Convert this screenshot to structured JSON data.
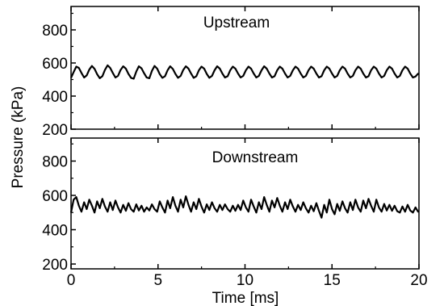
{
  "chart_data": [
    {
      "type": "line",
      "title": "Upstream",
      "xlabel": "",
      "ylabel": "",
      "xlim": [
        0,
        20
      ],
      "ylim": [
        200,
        900
      ],
      "xticks": [
        0,
        5,
        10,
        15,
        20
      ],
      "yticks": [
        200,
        400,
        600,
        800
      ],
      "ytick_labels": [
        "200",
        "400",
        "600",
        "800"
      ],
      "grid": false,
      "series": [
        {
          "color": "#000000",
          "x": [
            0.0,
            0.15,
            0.3,
            0.45,
            0.6,
            0.75,
            0.9,
            1.05,
            1.2,
            1.35,
            1.5,
            1.65,
            1.8,
            1.95,
            2.1,
            2.25,
            2.4,
            2.55,
            2.7,
            2.85,
            3.0,
            3.15,
            3.3,
            3.45,
            3.6,
            3.75,
            3.9,
            4.05,
            4.2,
            4.35,
            4.5,
            4.65,
            4.8,
            4.95,
            5.1,
            5.25,
            5.4,
            5.55,
            5.7,
            5.85,
            6.0,
            6.15,
            6.3,
            6.45,
            6.6,
            6.75,
            6.9,
            7.05,
            7.2,
            7.35,
            7.5,
            7.65,
            7.8,
            7.95,
            8.1,
            8.25,
            8.4,
            8.55,
            8.7,
            8.85,
            9.0,
            9.15,
            9.3,
            9.45,
            9.6,
            9.75,
            9.9,
            10.05,
            10.2,
            10.35,
            10.5,
            10.65,
            10.8,
            10.95,
            11.1,
            11.25,
            11.4,
            11.55,
            11.7,
            11.85,
            12.0,
            12.15,
            12.3,
            12.45,
            12.6,
            12.75,
            12.9,
            13.05,
            13.2,
            13.35,
            13.5,
            13.65,
            13.8,
            13.95,
            14.1,
            14.25,
            14.4,
            14.55,
            14.7,
            14.85,
            15.0,
            15.15,
            15.3,
            15.45,
            15.6,
            15.75,
            15.9,
            16.05,
            16.2,
            16.35,
            16.5,
            16.65,
            16.8,
            16.95,
            17.1,
            17.25,
            17.4,
            17.55,
            17.7,
            17.85,
            18.0,
            18.15,
            18.3,
            18.45,
            18.6,
            18.75,
            18.9,
            19.05,
            19.2,
            19.35,
            19.5,
            19.65,
            19.8,
            19.95,
            20.0
          ],
          "values": [
            510,
            545,
            578,
            570,
            540,
            512,
            525,
            560,
            582,
            565,
            532,
            508,
            520,
            558,
            586,
            570,
            540,
            512,
            522,
            558,
            580,
            566,
            534,
            510,
            505,
            548,
            580,
            568,
            538,
            512,
            508,
            552,
            582,
            566,
            532,
            510,
            520,
            556,
            580,
            564,
            534,
            510,
            522,
            558,
            580,
            566,
            536,
            510,
            520,
            556,
            578,
            566,
            534,
            510,
            522,
            556,
            580,
            566,
            536,
            512,
            520,
            556,
            578,
            566,
            536,
            512,
            522,
            556,
            578,
            566,
            536,
            512,
            522,
            556,
            580,
            566,
            536,
            512,
            520,
            556,
            578,
            566,
            536,
            512,
            522,
            556,
            578,
            566,
            536,
            512,
            522,
            556,
            578,
            566,
            536,
            512,
            520,
            556,
            578,
            566,
            536,
            512,
            522,
            556,
            578,
            566,
            536,
            512,
            522,
            556,
            578,
            566,
            536,
            512,
            520,
            556,
            578,
            566,
            536,
            512,
            522,
            556,
            578,
            566,
            536,
            512,
            522,
            556,
            578,
            566,
            536,
            512,
            518,
            535,
            532
          ]
        }
      ]
    },
    {
      "type": "line",
      "title": "Downstream",
      "xlabel": "Time [ms]",
      "ylabel": "Pressure (kPa)",
      "xlim": [
        0,
        20
      ],
      "ylim": [
        200,
        900
      ],
      "xticks": [
        0,
        5,
        10,
        15,
        20
      ],
      "xtick_labels": [
        "0",
        "5",
        "10",
        "15",
        "20"
      ],
      "yticks": [
        200,
        400,
        600,
        800
      ],
      "ytick_labels": [
        "200",
        "400",
        "600",
        "800"
      ],
      "grid": false,
      "series": [
        {
          "color": "#000000",
          "x": [
            0.0,
            0.15,
            0.3,
            0.45,
            0.6,
            0.75,
            0.9,
            1.05,
            1.2,
            1.35,
            1.5,
            1.65,
            1.8,
            1.95,
            2.1,
            2.25,
            2.4,
            2.55,
            2.7,
            2.85,
            3.0,
            3.15,
            3.3,
            3.45,
            3.6,
            3.75,
            3.9,
            4.05,
            4.2,
            4.35,
            4.5,
            4.65,
            4.8,
            4.95,
            5.1,
            5.25,
            5.4,
            5.55,
            5.7,
            5.85,
            6.0,
            6.15,
            6.3,
            6.45,
            6.6,
            6.75,
            6.9,
            7.05,
            7.2,
            7.35,
            7.5,
            7.65,
            7.8,
            7.95,
            8.1,
            8.25,
            8.4,
            8.55,
            8.7,
            8.85,
            9.0,
            9.15,
            9.3,
            9.45,
            9.6,
            9.75,
            9.9,
            10.05,
            10.2,
            10.35,
            10.5,
            10.65,
            10.8,
            10.95,
            11.1,
            11.25,
            11.4,
            11.55,
            11.7,
            11.85,
            12.0,
            12.15,
            12.3,
            12.45,
            12.6,
            12.75,
            12.9,
            13.05,
            13.2,
            13.35,
            13.5,
            13.65,
            13.8,
            13.95,
            14.1,
            14.25,
            14.4,
            14.55,
            14.7,
            14.85,
            15.0,
            15.15,
            15.3,
            15.45,
            15.6,
            15.75,
            15.9,
            16.05,
            16.2,
            16.35,
            16.5,
            16.65,
            16.8,
            16.95,
            17.1,
            17.25,
            17.4,
            17.55,
            17.7,
            17.85,
            18.0,
            18.15,
            18.3,
            18.45,
            18.6,
            18.75,
            18.9,
            19.05,
            19.2,
            19.35,
            19.5,
            19.65,
            19.8,
            19.95,
            20.0
          ],
          "values": [
            500,
            575,
            590,
            540,
            505,
            560,
            520,
            575,
            540,
            500,
            565,
            525,
            580,
            535,
            505,
            560,
            515,
            570,
            530,
            500,
            545,
            510,
            555,
            520,
            505,
            548,
            512,
            540,
            505,
            530,
            512,
            548,
            520,
            505,
            565,
            530,
            500,
            570,
            525,
            590,
            540,
            505,
            575,
            530,
            595,
            545,
            505,
            560,
            520,
            580,
            535,
            500,
            548,
            515,
            560,
            525,
            505,
            545,
            515,
            548,
            520,
            505,
            540,
            510,
            545,
            515,
            570,
            530,
            505,
            575,
            535,
            500,
            560,
            520,
            590,
            545,
            505,
            570,
            530,
            585,
            540,
            505,
            560,
            520,
            575,
            535,
            505,
            545,
            515,
            560,
            525,
            500,
            540,
            508,
            555,
            510,
            470,
            545,
            500,
            575,
            520,
            490,
            550,
            510,
            565,
            525,
            500,
            560,
            515,
            575,
            530,
            505,
            570,
            525,
            580,
            540,
            505,
            575,
            530,
            505,
            550,
            512,
            545,
            510,
            540,
            508,
            500,
            535,
            505,
            545,
            512,
            500,
            530,
            505,
            505
          ]
        }
      ]
    }
  ]
}
